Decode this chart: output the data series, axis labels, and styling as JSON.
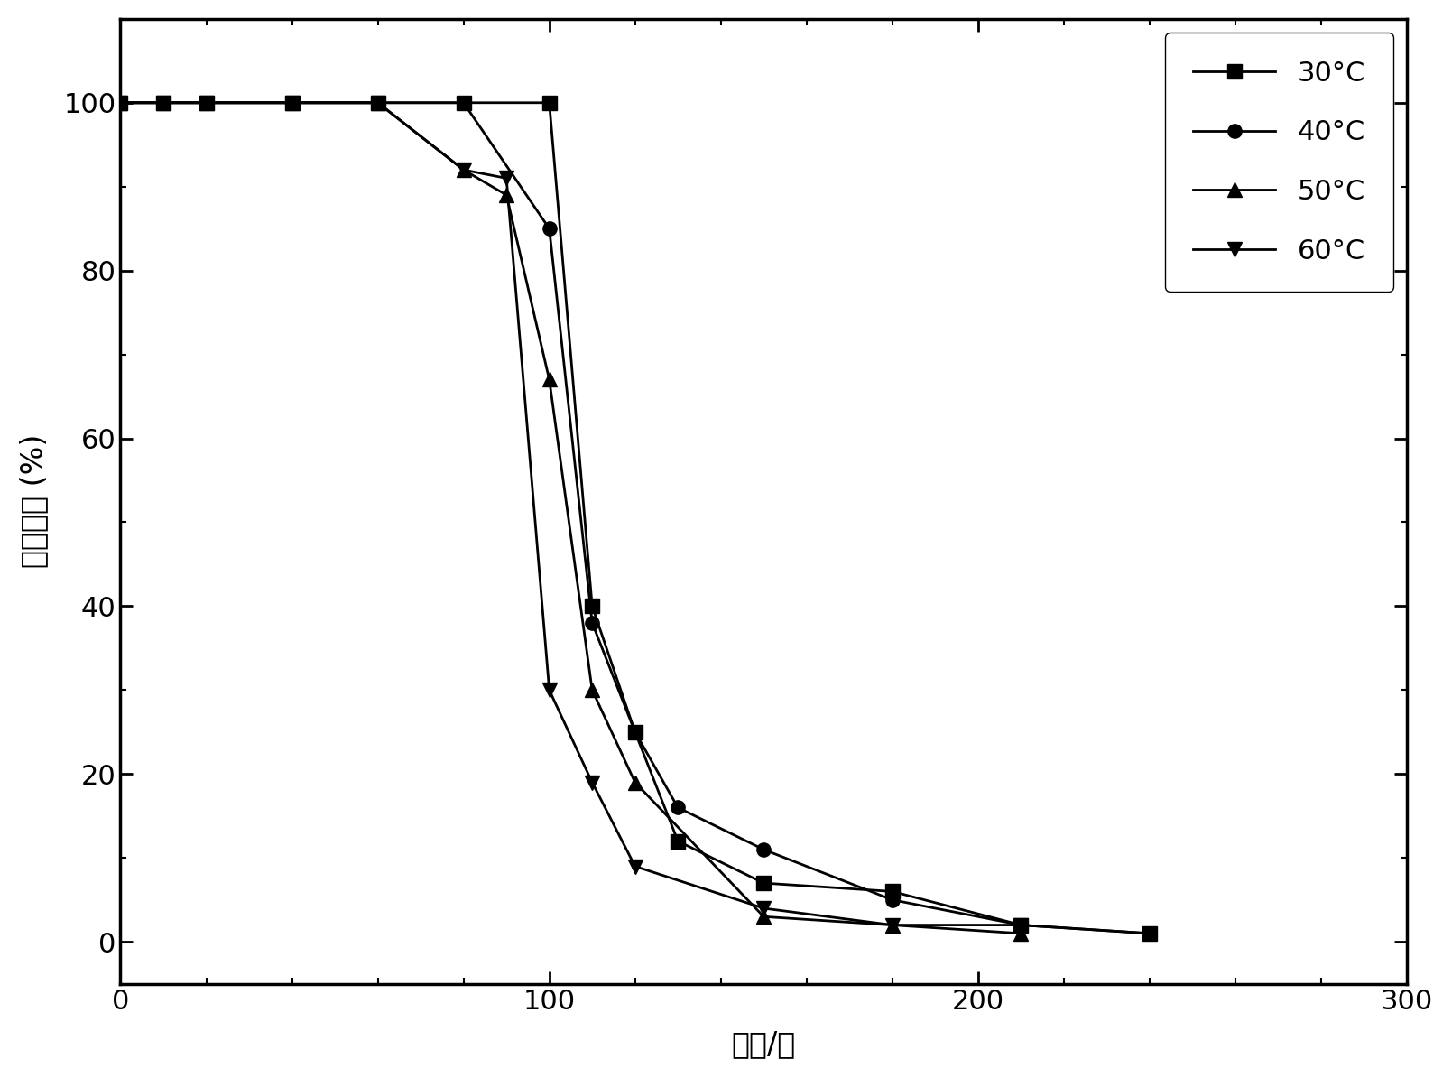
{
  "series": [
    {
      "label": "30°C",
      "marker": "s",
      "linestyle": "-",
      "x": [
        0,
        10,
        20,
        40,
        60,
        80,
        100,
        110,
        120,
        130,
        150,
        180,
        210,
        240
      ],
      "y": [
        100,
        100,
        100,
        100,
        100,
        100,
        100,
        40,
        25,
        12,
        7,
        6,
        2,
        1
      ]
    },
    {
      "label": "40°C",
      "marker": "o",
      "linestyle": "-",
      "x": [
        0,
        10,
        20,
        40,
        60,
        80,
        100,
        110,
        120,
        130,
        150,
        180,
        210,
        240
      ],
      "y": [
        100,
        100,
        100,
        100,
        100,
        100,
        85,
        38,
        25,
        16,
        11,
        5,
        2,
        1
      ]
    },
    {
      "label": "50°C",
      "marker": "^",
      "linestyle": "-",
      "x": [
        0,
        10,
        20,
        40,
        60,
        80,
        90,
        100,
        110,
        120,
        150,
        180,
        210
      ],
      "y": [
        100,
        100,
        100,
        100,
        100,
        92,
        89,
        67,
        30,
        19,
        3,
        2,
        1
      ]
    },
    {
      "label": "60°C",
      "marker": "v",
      "linestyle": "-",
      "x": [
        0,
        10,
        20,
        40,
        60,
        80,
        90,
        100,
        110,
        120,
        150,
        180,
        210
      ],
      "y": [
        100,
        100,
        100,
        100,
        100,
        92,
        91,
        30,
        19,
        9,
        4,
        2,
        2
      ]
    }
  ],
  "xlabel": "时间/分",
  "ylabel": "吸收效率 (%)",
  "xlim": [
    0,
    300
  ],
  "ylim": [
    -5,
    110
  ],
  "xticks_major": [
    0,
    100,
    200,
    300
  ],
  "xticks_minor": [
    0,
    20,
    40,
    60,
    80,
    100,
    120,
    140,
    160,
    180,
    200,
    220,
    240,
    260,
    280,
    300
  ],
  "yticks_major": [
    0,
    20,
    40,
    60,
    80,
    100
  ],
  "yticks_minor": [
    0,
    10,
    20,
    30,
    40,
    50,
    60,
    70,
    80,
    90,
    100
  ],
  "line_color": "#000000",
  "marker_size": 11,
  "line_width": 2.0,
  "legend_loc": "upper right",
  "background_color": "#ffffff",
  "font_size_ticks": 22,
  "font_size_labels": 24,
  "font_size_legend": 22
}
